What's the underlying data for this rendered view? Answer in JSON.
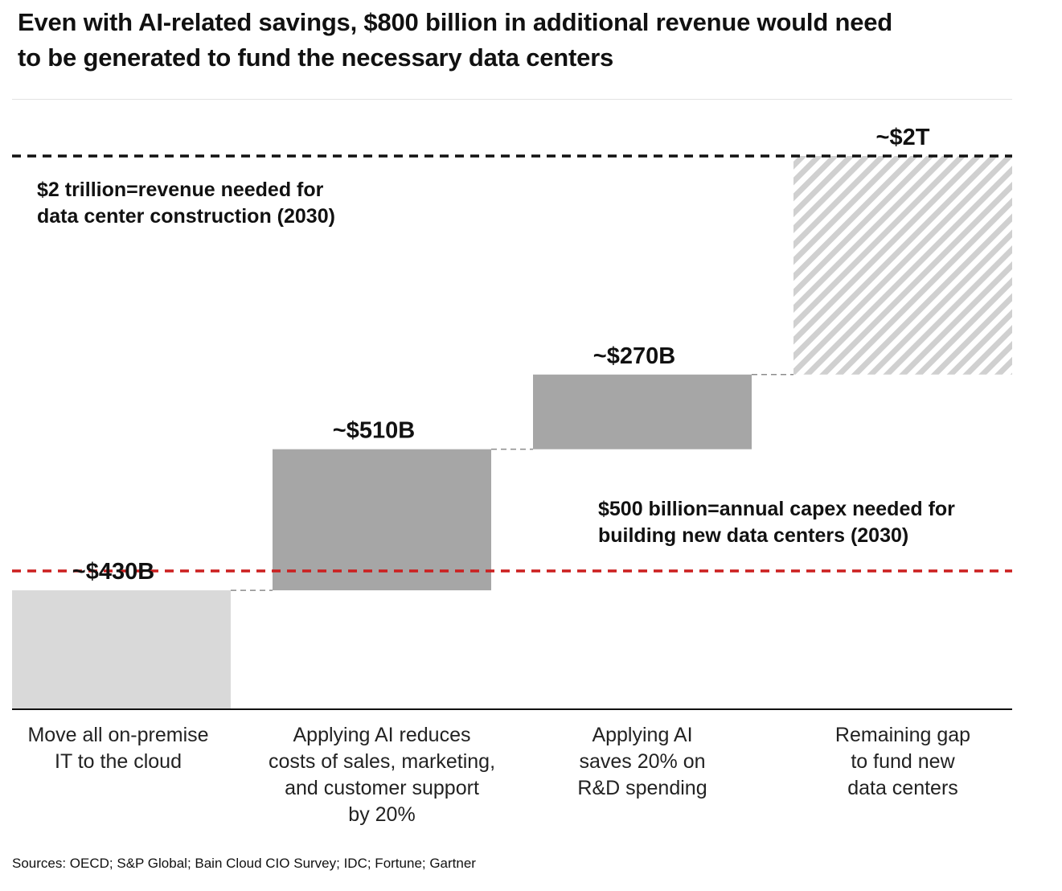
{
  "title_line1": "Even with AI-related savings, $800 billion in additional revenue would need",
  "title_line2": "to be generated to fund the necessary data centers",
  "source": "Sources: OECD; S&P Global; Bain Cloud CIO Survey; IDC; Fortune; Gartner",
  "notes": {
    "revenue_line1": "$2 trillion=revenue needed for",
    "revenue_line2": "data center construction (2030)",
    "capex_line1": "$500 billion=annual capex needed for",
    "capex_line2": "building new data centers (2030)"
  },
  "categories": [
    {
      "line1": "Move all on-premise",
      "line2": "IT to the cloud",
      "line3": "",
      "line4": ""
    },
    {
      "line1": "Applying AI reduces",
      "line2": "costs of sales, marketing,",
      "line3": "and customer support",
      "line4": "by 20%"
    },
    {
      "line1": "Applying AI",
      "line2": "saves 20% on",
      "line3": "R&D spending",
      "line4": ""
    },
    {
      "line1": "Remaining gap",
      "line2": "to fund new",
      "line3": "data centers",
      "line4": ""
    }
  ],
  "chart_data": {
    "type": "waterfall",
    "title": "Even with AI-related savings, $800 billion in additional revenue would need to be generated to fund the necessary data centers",
    "units": "USD billions",
    "ylim": [
      0,
      2000
    ],
    "series": [
      {
        "name": "Move all on-premise IT to the cloud",
        "label": "~$430B",
        "start": 0,
        "value": 430,
        "style": "light-gray"
      },
      {
        "name": "Applying AI reduces costs of sales, marketing, and customer support by 20%",
        "label": "~$510B",
        "start": 430,
        "value": 510,
        "style": "gray"
      },
      {
        "name": "Applying AI saves 20% on R&D spending",
        "label": "~$270B",
        "start": 940,
        "value": 270,
        "style": "gray"
      },
      {
        "name": "Remaining gap to fund new data centers",
        "label": "~$2T",
        "start": 1210,
        "value": 790,
        "total": 2000,
        "style": "hatched"
      }
    ],
    "reference_lines": [
      {
        "value": 2000,
        "label": "$2 trillion=revenue needed for data center construction (2030)",
        "color": "#111111"
      },
      {
        "value": 500,
        "label": "$500 billion=annual capex needed for building new data centers (2030)",
        "color": "#cc1f1f"
      }
    ],
    "colors": {
      "light": "#d9d9d9",
      "mid": "#a6a6a6",
      "hatch": "#d0d0d0",
      "red": "#cc1f1f",
      "dark": "#111111"
    }
  }
}
